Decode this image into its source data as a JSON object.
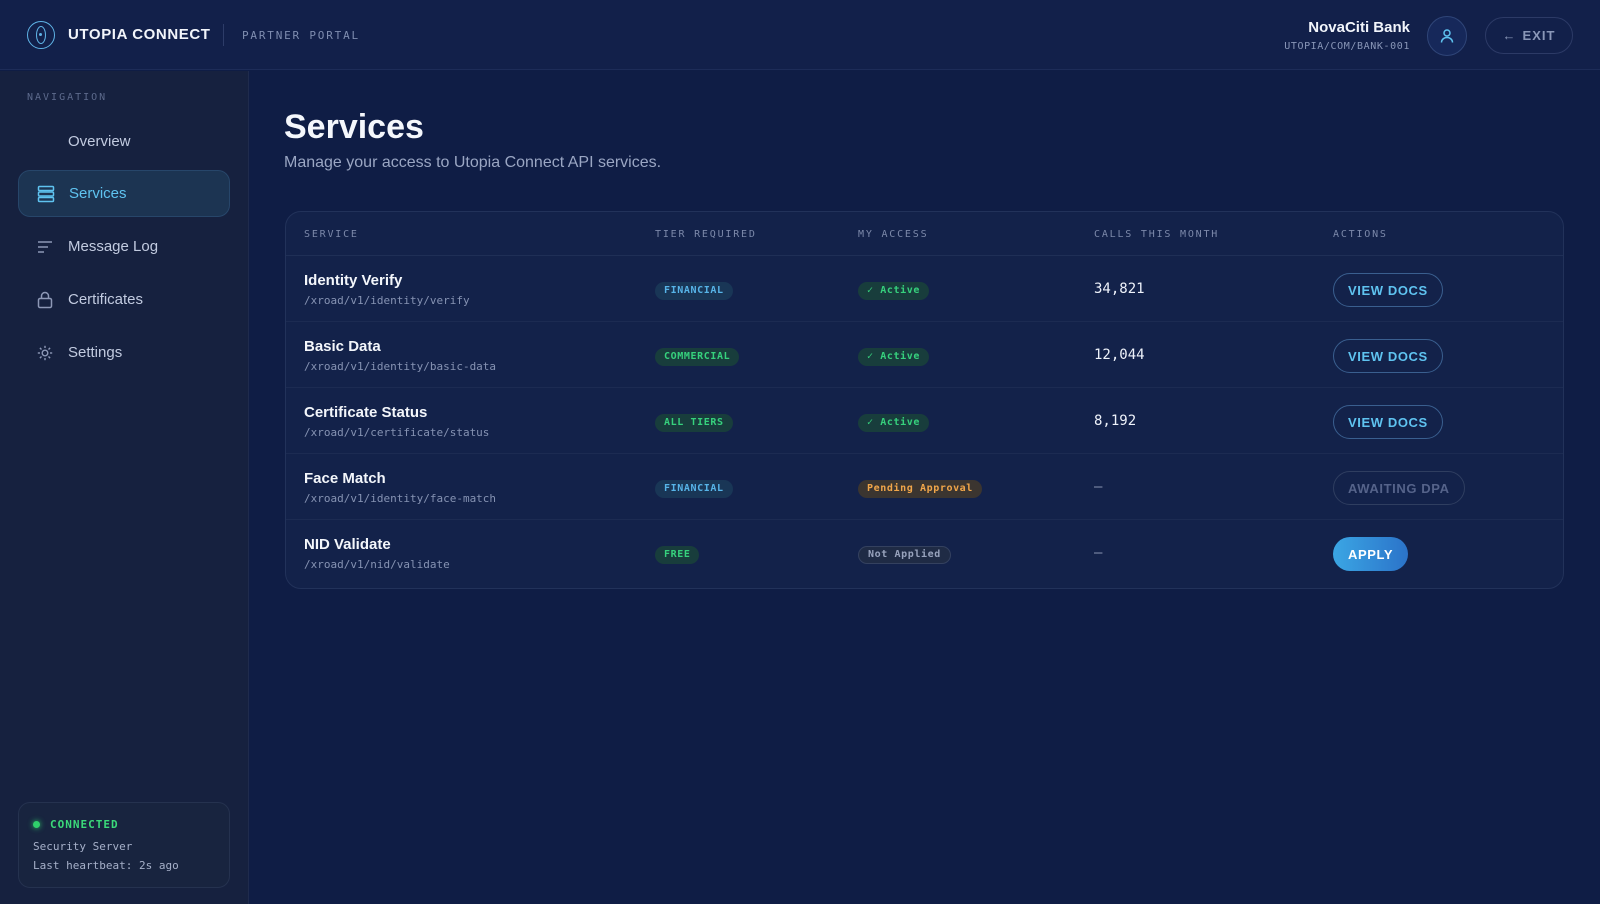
{
  "header": {
    "brand": "UTOPIA CONNECT",
    "subtitle": "PARTNER PORTAL",
    "org_name": "NovaCiti Bank",
    "org_id": "UTOPIA/COM/BANK-001",
    "exit_label": "EXIT"
  },
  "sidebar": {
    "heading": "NAVIGATION",
    "items": [
      {
        "label": "Overview",
        "icon": "overview-icon",
        "active": false
      },
      {
        "label": "Services",
        "icon": "services-stack-icon",
        "active": true
      },
      {
        "label": "Message Log",
        "icon": "lines-icon",
        "active": false
      },
      {
        "label": "Certificates",
        "icon": "lock-icon",
        "active": false
      },
      {
        "label": "Settings",
        "icon": "gear-icon",
        "active": false
      }
    ],
    "status": {
      "title": "CONNECTED",
      "line1": "Security Server",
      "line2": "Last heartbeat: 2s ago"
    }
  },
  "main": {
    "title": "Services",
    "subtitle": "Manage your access to Utopia Connect API services.",
    "table": {
      "headers": [
        "SERVICE",
        "TIER REQUIRED",
        "MY ACCESS",
        "CALLS THIS MONTH",
        "ACTIONS"
      ],
      "rows": [
        {
          "name": "Identity Verify",
          "path": "/xroad/v1/identity/verify",
          "tier": "FINANCIAL",
          "access": "✓ Active",
          "calls": "34,821",
          "action": "VIEW DOCS"
        },
        {
          "name": "Basic Data",
          "path": "/xroad/v1/identity/basic-data",
          "tier": "COMMERCIAL",
          "access": "✓ Active",
          "calls": "12,044",
          "action": "VIEW DOCS"
        },
        {
          "name": "Certificate Status",
          "path": "/xroad/v1/certificate/status",
          "tier": "ALL TIERS",
          "access": "✓ Active",
          "calls": "8,192",
          "action": "VIEW DOCS"
        },
        {
          "name": "Face Match",
          "path": "/xroad/v1/identity/face-match",
          "tier": "FINANCIAL",
          "access": "Pending Approval",
          "calls": "—",
          "action": "AWAITING DPA"
        },
        {
          "name": "NID Validate",
          "path": "/xroad/v1/nid/validate",
          "tier": "FREE",
          "access": "Not Applied",
          "calls": "—",
          "action": "APPLY"
        }
      ]
    }
  },
  "colors": {
    "background": "#0f1d45",
    "accent": "#5fc3f0",
    "success": "#36d17d",
    "warning": "#f1a64a"
  }
}
